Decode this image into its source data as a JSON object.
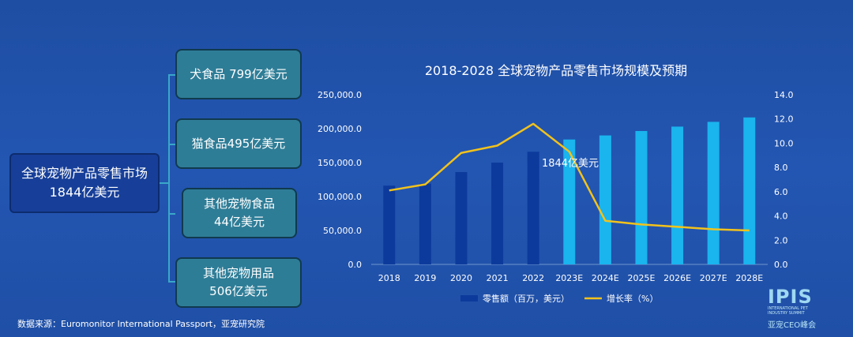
{
  "tree": {
    "root": {
      "line1": "全球宠物产品零售市场",
      "line2": "1844亿美元"
    },
    "leaves": [
      {
        "line1": "犬食品 799亿美元",
        "line2": ""
      },
      {
        "line1": "猫食品495亿美元",
        "line2": ""
      },
      {
        "line1": "其他宠物食品",
        "line2": "44亿美元"
      },
      {
        "line1": "其他宠物用品",
        "line2": "506亿美元"
      }
    ]
  },
  "source": "数据来源：Euromonitor International Passport，亚宠研究院",
  "logo": {
    "main": "IPIS",
    "sub": "INTERNATIONAL PET INDUSTRY SUMMIT",
    "cn": "亚宠CEO峰会"
  },
  "colors": {
    "bar_actual": "#0c3a9c",
    "bar_forecast": "#1ab4ee",
    "line": "#f2c21b"
  },
  "chart_data": {
    "type": "bar",
    "title": "2018-2028 全球宠物产品零售市场规模及预期",
    "categories": [
      "2018",
      "2019",
      "2020",
      "2021",
      "2022",
      "2023E",
      "2024E",
      "2025E",
      "2026E",
      "2027E",
      "2028E"
    ],
    "series": [
      {
        "name": "零售额（百万，美元）",
        "type": "bar",
        "axis": "left",
        "values": [
          116000,
          119000,
          136000,
          150000,
          166000,
          184000,
          190000,
          196500,
          203000,
          210000,
          216500
        ]
      },
      {
        "name": "增长率（%）",
        "type": "line",
        "axis": "right",
        "values": [
          6.1,
          6.6,
          9.2,
          9.8,
          11.6,
          9.3,
          3.6,
          3.3,
          3.1,
          2.9,
          2.8
        ]
      }
    ],
    "ylim_left": [
      0,
      250000
    ],
    "yticks_left": [
      "0.0",
      "50,000.0",
      "100,000.0",
      "150,000.0",
      "200,000.0",
      "250,000.0"
    ],
    "ylim_right": [
      0,
      14
    ],
    "yticks_right": [
      "0.0",
      "2.0",
      "4.0",
      "6.0",
      "8.0",
      "10.0",
      "12.0",
      "14.0"
    ],
    "annotation": "1844亿美元",
    "legend_position": "bottom",
    "grid": false
  }
}
